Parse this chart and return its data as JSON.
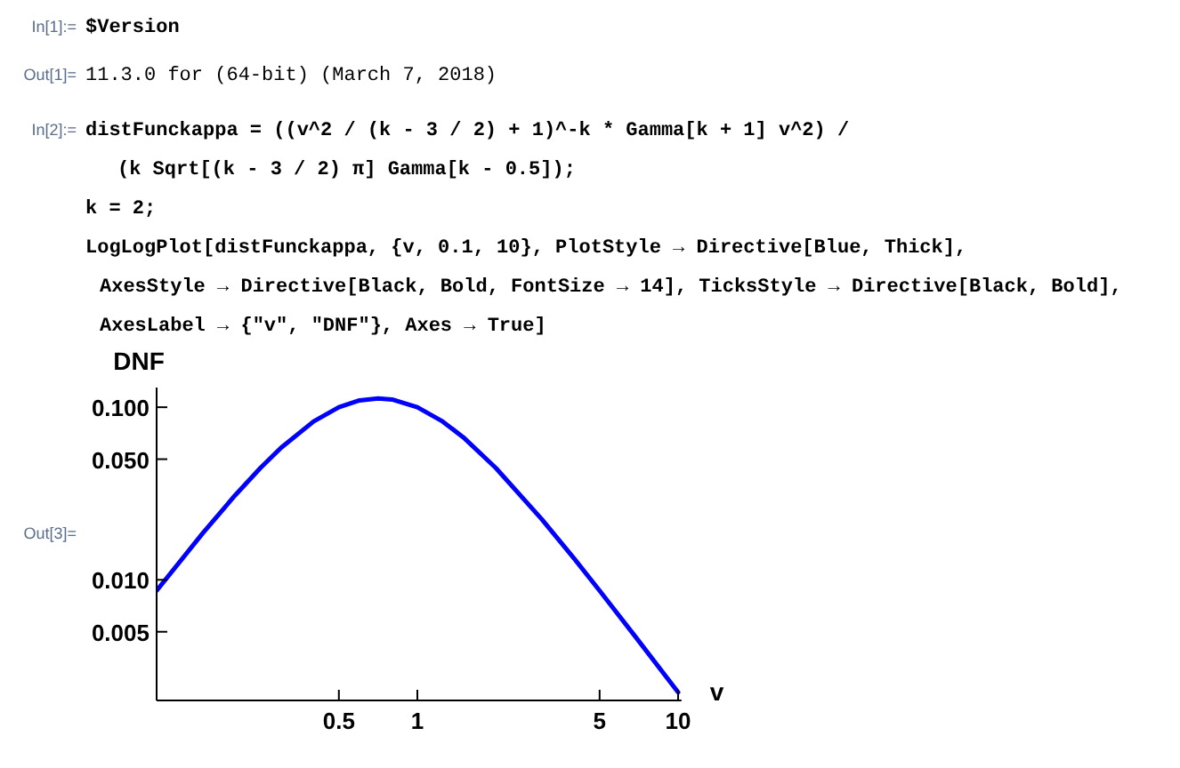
{
  "chart_data": {
    "type": "line",
    "xlabel": "v",
    "ylabel": "DNF",
    "log": "xy",
    "grid": false,
    "marker": "none",
    "line_style": "solid",
    "x": [
      0.1,
      0.15,
      0.2,
      0.25,
      0.3,
      0.4,
      0.5,
      0.6,
      0.707,
      0.8,
      1,
      1.25,
      1.5,
      2,
      3,
      4,
      5,
      7,
      10
    ],
    "series": [
      {
        "color": "#0000ff",
        "values": [
          0.00865,
          0.01855,
          0.03087,
          0.04446,
          0.0582,
          0.0827,
          0.1,
          0.1096,
          0.1125,
          0.1108,
          0.1,
          0.0827,
          0.067,
          0.04446,
          0.02245,
          0.01323,
          0.00865,
          0.0045,
          0.00223
        ]
      }
    ],
    "xlim": [
      0.1,
      10.3
    ],
    "ylim": [
      0.002,
      0.13
    ],
    "xticks": [
      {
        "value": 0.1,
        "label": null
      },
      0.5,
      1,
      5,
      10
    ],
    "yticks": [
      0.005,
      {
        "value": 0.01,
        "label": "0.010"
      },
      {
        "value": 0.05,
        "label": "0.050"
      },
      {
        "value": 0.1,
        "label": "0.100"
      }
    ],
    "annotations": [
      "In[1]:=",
      "$Version",
      "Out[1]=",
      "11.3.0 for (64-bit) (March 7, 2018)",
      "In[2]:=",
      "distFunckappa = ((v^2 / (k - 3 / 2) + 1)^-k * Gamma[k + 1] v^2) /",
      "(k Sqrt[(k - 3 / 2) π] Gamma[k - 0.5]);",
      "k = 2;",
      "LogLogPlot[distFunckappa, {v, 0.1, 10}, PlotStyle → Directive[Blue, Thick],",
      "AxesStyle → Directive[Black, Bold, FontSize → 14], TicksStyle → Directive[Black, Bold],",
      "AxesLabel → {\"v\", \"DNF\"}, Axes → True]",
      "Out[3]="
    ]
  }
}
